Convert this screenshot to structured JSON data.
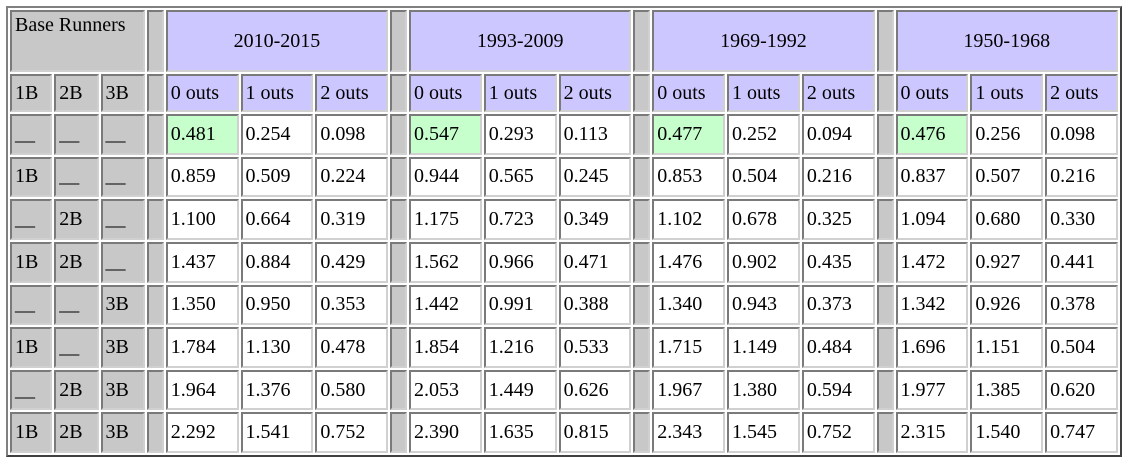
{
  "corner_label": "Base Runners",
  "runner_headers": [
    "1B",
    "2B",
    "3B"
  ],
  "eras": [
    {
      "label": "2010-2015"
    },
    {
      "label": "1993-2009"
    },
    {
      "label": "1969-1992"
    },
    {
      "label": "1950-1968"
    }
  ],
  "out_headers": [
    "0 outs",
    "1 outs",
    "2 outs"
  ],
  "rows": [
    {
      "runners": [
        "__",
        "__",
        "__"
      ],
      "values": [
        [
          "0.481",
          "0.254",
          "0.098"
        ],
        [
          "0.547",
          "0.293",
          "0.113"
        ],
        [
          "0.477",
          "0.252",
          "0.094"
        ],
        [
          "0.476",
          "0.256",
          "0.098"
        ]
      ]
    },
    {
      "runners": [
        "1B",
        "__",
        "__"
      ],
      "values": [
        [
          "0.859",
          "0.509",
          "0.224"
        ],
        [
          "0.944",
          "0.565",
          "0.245"
        ],
        [
          "0.853",
          "0.504",
          "0.216"
        ],
        [
          "0.837",
          "0.507",
          "0.216"
        ]
      ]
    },
    {
      "runners": [
        "__",
        "2B",
        "__"
      ],
      "values": [
        [
          "1.100",
          "0.664",
          "0.319"
        ],
        [
          "1.175",
          "0.723",
          "0.349"
        ],
        [
          "1.102",
          "0.678",
          "0.325"
        ],
        [
          "1.094",
          "0.680",
          "0.330"
        ]
      ]
    },
    {
      "runners": [
        "1B",
        "2B",
        "__"
      ],
      "values": [
        [
          "1.437",
          "0.884",
          "0.429"
        ],
        [
          "1.562",
          "0.966",
          "0.471"
        ],
        [
          "1.476",
          "0.902",
          "0.435"
        ],
        [
          "1.472",
          "0.927",
          "0.441"
        ]
      ]
    },
    {
      "runners": [
        "__",
        "__",
        "3B"
      ],
      "values": [
        [
          "1.350",
          "0.950",
          "0.353"
        ],
        [
          "1.442",
          "0.991",
          "0.388"
        ],
        [
          "1.340",
          "0.943",
          "0.373"
        ],
        [
          "1.342",
          "0.926",
          "0.378"
        ]
      ]
    },
    {
      "runners": [
        "1B",
        "__",
        "3B"
      ],
      "values": [
        [
          "1.784",
          "1.130",
          "0.478"
        ],
        [
          "1.854",
          "1.216",
          "0.533"
        ],
        [
          "1.715",
          "1.149",
          "0.484"
        ],
        [
          "1.696",
          "1.151",
          "0.504"
        ]
      ]
    },
    {
      "runners": [
        "__",
        "2B",
        "3B"
      ],
      "values": [
        [
          "1.964",
          "1.376",
          "0.580"
        ],
        [
          "2.053",
          "1.449",
          "0.626"
        ],
        [
          "1.967",
          "1.380",
          "0.594"
        ],
        [
          "1.977",
          "1.385",
          "0.620"
        ]
      ]
    },
    {
      "runners": [
        "1B",
        "2B",
        "3B"
      ],
      "values": [
        [
          "2.292",
          "1.541",
          "0.752"
        ],
        [
          "2.390",
          "1.635",
          "0.815"
        ],
        [
          "2.343",
          "1.545",
          "0.752"
        ],
        [
          "2.315",
          "1.540",
          "0.747"
        ]
      ]
    }
  ],
  "highlight_color": "#c6ffcc",
  "header_color": "#ccc8ff",
  "frame_color": "#c8c8c8"
}
